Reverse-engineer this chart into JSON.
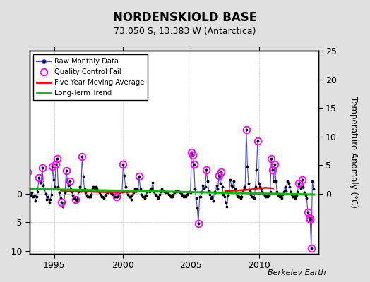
{
  "title": "NORDENSKIOLD BASE",
  "subtitle": "73.050 S, 13.383 W (Antarctica)",
  "ylabel": "Temperature Anomaly (°C)",
  "credit": "Berkeley Earth",
  "xlim": [
    1993.2,
    2014.3
  ],
  "ylim": [
    -10.5,
    25
  ],
  "background_color": "#e0e0e0",
  "plot_bg_color": "#ffffff",
  "raw_color": "#4444ff",
  "raw_marker_color": "#000000",
  "qc_color": "#ff00ff",
  "ma_color": "#ff0000",
  "trend_color": "#00bb00",
  "raw_data": [
    [
      1993.042,
      3.8
    ],
    [
      1993.125,
      1.5
    ],
    [
      1993.208,
      0.8
    ],
    [
      1993.292,
      -0.3
    ],
    [
      1993.375,
      0.2
    ],
    [
      1993.458,
      -0.5
    ],
    [
      1993.542,
      -0.3
    ],
    [
      1993.625,
      -1.2
    ],
    [
      1993.708,
      -0.5
    ],
    [
      1993.792,
      0.3
    ],
    [
      1993.875,
      2.8
    ],
    [
      1993.958,
      2.0
    ],
    [
      1994.042,
      2.0
    ],
    [
      1994.125,
      4.5
    ],
    [
      1994.208,
      1.5
    ],
    [
      1994.292,
      0.8
    ],
    [
      1994.375,
      0.0
    ],
    [
      1994.458,
      -1.0
    ],
    [
      1994.542,
      -0.5
    ],
    [
      1994.625,
      -1.5
    ],
    [
      1994.708,
      -1.0
    ],
    [
      1994.792,
      -0.2
    ],
    [
      1994.875,
      4.8
    ],
    [
      1994.958,
      2.5
    ],
    [
      1995.042,
      1.2
    ],
    [
      1995.125,
      5.2
    ],
    [
      1995.208,
      6.2
    ],
    [
      1995.292,
      1.2
    ],
    [
      1995.375,
      0.2
    ],
    [
      1995.458,
      -0.8
    ],
    [
      1995.542,
      -1.5
    ],
    [
      1995.625,
      -2.2
    ],
    [
      1995.708,
      -1.5
    ],
    [
      1995.792,
      0.2
    ],
    [
      1995.875,
      4.0
    ],
    [
      1995.958,
      2.5
    ],
    [
      1996.042,
      1.5
    ],
    [
      1996.125,
      2.2
    ],
    [
      1996.208,
      0.8
    ],
    [
      1996.292,
      0.3
    ],
    [
      1996.375,
      -0.3
    ],
    [
      1996.458,
      -0.8
    ],
    [
      1996.542,
      -1.0
    ],
    [
      1996.625,
      -1.2
    ],
    [
      1996.708,
      -0.8
    ],
    [
      1996.792,
      0.3
    ],
    [
      1996.875,
      1.2
    ],
    [
      1996.958,
      0.5
    ],
    [
      1997.042,
      6.5
    ],
    [
      1997.125,
      3.0
    ],
    [
      1997.208,
      0.8
    ],
    [
      1997.292,
      0.2
    ],
    [
      1997.375,
      -0.3
    ],
    [
      1997.458,
      -0.5
    ],
    [
      1997.542,
      -0.5
    ],
    [
      1997.625,
      -0.5
    ],
    [
      1997.708,
      -0.2
    ],
    [
      1997.792,
      0.8
    ],
    [
      1997.875,
      1.2
    ],
    [
      1997.958,
      0.8
    ],
    [
      1998.042,
      1.2
    ],
    [
      1998.125,
      1.0
    ],
    [
      1998.208,
      0.5
    ],
    [
      1998.292,
      0.2
    ],
    [
      1998.375,
      -0.2
    ],
    [
      1998.458,
      -0.5
    ],
    [
      1998.542,
      -0.5
    ],
    [
      1998.625,
      -0.8
    ],
    [
      1998.708,
      -0.3
    ],
    [
      1998.792,
      -0.2
    ],
    [
      1998.875,
      0.3
    ],
    [
      1998.958,
      0.2
    ],
    [
      1999.042,
      0.5
    ],
    [
      1999.125,
      0.2
    ],
    [
      1999.208,
      0.0
    ],
    [
      1999.292,
      -0.2
    ],
    [
      1999.375,
      -0.5
    ],
    [
      1999.458,
      -0.5
    ],
    [
      1999.542,
      -0.5
    ],
    [
      1999.625,
      -0.5
    ],
    [
      1999.708,
      -0.3
    ],
    [
      1999.792,
      0.2
    ],
    [
      1999.875,
      0.5
    ],
    [
      1999.958,
      0.3
    ],
    [
      2000.042,
      5.2
    ],
    [
      2000.125,
      3.2
    ],
    [
      2000.208,
      1.2
    ],
    [
      2000.292,
      0.3
    ],
    [
      2000.375,
      -0.2
    ],
    [
      2000.458,
      -0.5
    ],
    [
      2000.542,
      -0.5
    ],
    [
      2000.625,
      -1.0
    ],
    [
      2000.708,
      -0.3
    ],
    [
      2000.792,
      0.2
    ],
    [
      2000.875,
      0.8
    ],
    [
      2000.958,
      0.5
    ],
    [
      2001.042,
      0.8
    ],
    [
      2001.125,
      0.5
    ],
    [
      2001.208,
      3.0
    ],
    [
      2001.292,
      0.8
    ],
    [
      2001.375,
      -0.2
    ],
    [
      2001.458,
      -0.5
    ],
    [
      2001.542,
      -0.5
    ],
    [
      2001.625,
      -0.8
    ],
    [
      2001.708,
      -0.3
    ],
    [
      2001.792,
      0.3
    ],
    [
      2001.875,
      0.5
    ],
    [
      2001.958,
      0.3
    ],
    [
      2002.042,
      0.8
    ],
    [
      2002.125,
      1.0
    ],
    [
      2002.208,
      2.0
    ],
    [
      2002.292,
      0.3
    ],
    [
      2002.375,
      -0.2
    ],
    [
      2002.458,
      -0.3
    ],
    [
      2002.542,
      -0.5
    ],
    [
      2002.625,
      -0.8
    ],
    [
      2002.708,
      -0.2
    ],
    [
      2002.792,
      0.3
    ],
    [
      2002.875,
      0.8
    ],
    [
      2002.958,
      0.5
    ],
    [
      2003.042,
      0.3
    ],
    [
      2003.125,
      0.2
    ],
    [
      2003.208,
      0.3
    ],
    [
      2003.292,
      0.2
    ],
    [
      2003.375,
      -0.2
    ],
    [
      2003.458,
      -0.3
    ],
    [
      2003.542,
      -0.5
    ],
    [
      2003.625,
      -0.5
    ],
    [
      2003.708,
      -0.2
    ],
    [
      2003.792,
      0.2
    ],
    [
      2003.875,
      0.5
    ],
    [
      2003.958,
      0.3
    ],
    [
      2004.042,
      0.5
    ],
    [
      2004.125,
      0.3
    ],
    [
      2004.208,
      0.2
    ],
    [
      2004.292,
      0.0
    ],
    [
      2004.375,
      -0.3
    ],
    [
      2004.458,
      -0.5
    ],
    [
      2004.542,
      -0.3
    ],
    [
      2004.625,
      -0.5
    ],
    [
      2004.708,
      -0.2
    ],
    [
      2004.792,
      0.2
    ],
    [
      2004.875,
      0.3
    ],
    [
      2004.958,
      0.2
    ],
    [
      2005.042,
      7.2
    ],
    [
      2005.125,
      6.8
    ],
    [
      2005.208,
      5.2
    ],
    [
      2005.292,
      0.8
    ],
    [
      2005.375,
      -0.8
    ],
    [
      2005.458,
      -2.5
    ],
    [
      2005.542,
      -5.2
    ],
    [
      2005.625,
      -0.5
    ],
    [
      2005.708,
      -0.5
    ],
    [
      2005.792,
      0.3
    ],
    [
      2005.875,
      1.5
    ],
    [
      2005.958,
      1.0
    ],
    [
      2006.042,
      1.2
    ],
    [
      2006.125,
      4.2
    ],
    [
      2006.208,
      2.2
    ],
    [
      2006.292,
      0.5
    ],
    [
      2006.375,
      -0.2
    ],
    [
      2006.458,
      -0.8
    ],
    [
      2006.542,
      -0.5
    ],
    [
      2006.625,
      -1.2
    ],
    [
      2006.708,
      0.3
    ],
    [
      2006.792,
      0.2
    ],
    [
      2006.875,
      1.5
    ],
    [
      2006.958,
      0.8
    ],
    [
      2007.042,
      3.2
    ],
    [
      2007.125,
      1.8
    ],
    [
      2007.208,
      3.8
    ],
    [
      2007.292,
      1.2
    ],
    [
      2007.375,
      -0.2
    ],
    [
      2007.458,
      -0.5
    ],
    [
      2007.542,
      -1.5
    ],
    [
      2007.625,
      -2.2
    ],
    [
      2007.708,
      -0.3
    ],
    [
      2007.792,
      0.3
    ],
    [
      2007.875,
      2.5
    ],
    [
      2007.958,
      1.5
    ],
    [
      2008.042,
      1.2
    ],
    [
      2008.125,
      2.2
    ],
    [
      2008.208,
      0.8
    ],
    [
      2008.292,
      0.2
    ],
    [
      2008.375,
      -0.3
    ],
    [
      2008.458,
      -0.5
    ],
    [
      2008.542,
      -0.5
    ],
    [
      2008.625,
      -0.8
    ],
    [
      2008.708,
      -0.5
    ],
    [
      2008.792,
      0.3
    ],
    [
      2008.875,
      1.2
    ],
    [
      2008.958,
      0.8
    ],
    [
      2009.042,
      11.2
    ],
    [
      2009.125,
      4.8
    ],
    [
      2009.208,
      1.8
    ],
    [
      2009.292,
      0.5
    ],
    [
      2009.375,
      -0.2
    ],
    [
      2009.458,
      -0.5
    ],
    [
      2009.542,
      -0.5
    ],
    [
      2009.625,
      -0.8
    ],
    [
      2009.708,
      1.2
    ],
    [
      2009.792,
      4.2
    ],
    [
      2009.875,
      9.2
    ],
    [
      2009.958,
      1.8
    ],
    [
      2010.042,
      1.2
    ],
    [
      2010.125,
      0.8
    ],
    [
      2010.208,
      0.3
    ],
    [
      2010.292,
      0.0
    ],
    [
      2010.375,
      -0.3
    ],
    [
      2010.458,
      -0.5
    ],
    [
      2010.542,
      -0.3
    ],
    [
      2010.625,
      -0.5
    ],
    [
      2010.708,
      -0.3
    ],
    [
      2010.792,
      0.3
    ],
    [
      2010.875,
      6.2
    ],
    [
      2010.958,
      4.2
    ],
    [
      2011.042,
      2.2
    ],
    [
      2011.125,
      5.2
    ],
    [
      2011.208,
      2.2
    ],
    [
      2011.292,
      0.3
    ],
    [
      2011.375,
      -0.3
    ],
    [
      2011.458,
      -0.5
    ],
    [
      2011.542,
      -0.3
    ],
    [
      2011.625,
      -0.8
    ],
    [
      2011.708,
      -0.2
    ],
    [
      2011.792,
      0.3
    ],
    [
      2011.875,
      1.2
    ],
    [
      2011.958,
      0.5
    ],
    [
      2012.042,
      2.2
    ],
    [
      2012.125,
      1.8
    ],
    [
      2012.208,
      1.2
    ],
    [
      2012.292,
      0.3
    ],
    [
      2012.375,
      -0.2
    ],
    [
      2012.458,
      -0.5
    ],
    [
      2012.542,
      -0.3
    ],
    [
      2012.625,
      -0.8
    ],
    [
      2012.708,
      -0.3
    ],
    [
      2012.792,
      0.3
    ],
    [
      2012.875,
      1.8
    ],
    [
      2012.958,
      1.2
    ],
    [
      2013.042,
      1.0
    ],
    [
      2013.125,
      2.5
    ],
    [
      2013.208,
      1.2
    ],
    [
      2013.292,
      0.2
    ],
    [
      2013.375,
      -0.3
    ],
    [
      2013.458,
      -0.8
    ],
    [
      2013.542,
      -3.2
    ],
    [
      2013.625,
      -4.2
    ],
    [
      2013.708,
      -4.5
    ],
    [
      2013.792,
      -9.5
    ],
    [
      2013.875,
      2.2
    ],
    [
      2013.958,
      0.8
    ]
  ],
  "qc_points": [
    [
      1993.042,
      3.8
    ],
    [
      1993.875,
      2.8
    ],
    [
      1994.125,
      4.5
    ],
    [
      1994.875,
      4.8
    ],
    [
      1995.125,
      5.2
    ],
    [
      1995.208,
      6.2
    ],
    [
      1995.542,
      -1.5
    ],
    [
      1995.875,
      4.0
    ],
    [
      1996.125,
      2.2
    ],
    [
      1996.542,
      -1.0
    ],
    [
      1997.042,
      6.5
    ],
    [
      1999.542,
      -0.5
    ],
    [
      2000.042,
      5.2
    ],
    [
      2001.208,
      3.0
    ],
    [
      2005.042,
      7.2
    ],
    [
      2005.125,
      6.8
    ],
    [
      2005.208,
      5.2
    ],
    [
      2005.542,
      -5.2
    ],
    [
      2006.125,
      4.2
    ],
    [
      2007.042,
      3.2
    ],
    [
      2007.208,
      3.8
    ],
    [
      2009.042,
      11.2
    ],
    [
      2009.875,
      9.2
    ],
    [
      2010.875,
      6.2
    ],
    [
      2010.958,
      4.2
    ],
    [
      2011.125,
      5.2
    ],
    [
      2012.875,
      1.8
    ],
    [
      2013.125,
      2.5
    ],
    [
      2013.542,
      -3.2
    ],
    [
      2013.625,
      -4.2
    ],
    [
      2013.708,
      -4.5
    ],
    [
      2013.792,
      -9.5
    ]
  ],
  "moving_avg_seg1": [
    [
      1995.5,
      0.55
    ],
    [
      1996.0,
      0.48
    ],
    [
      1996.5,
      0.4
    ],
    [
      1997.0,
      0.42
    ],
    [
      1997.5,
      0.38
    ],
    [
      1998.0,
      0.32
    ],
    [
      1998.5,
      0.28
    ],
    [
      1999.0,
      0.25
    ],
    [
      1999.5,
      0.22
    ],
    [
      2000.0,
      0.28
    ],
    [
      2000.5,
      0.3
    ],
    [
      2001.0,
      0.28
    ]
  ],
  "moving_avg_seg2": [
    [
      2007.5,
      0.48
    ],
    [
      2008.0,
      0.52
    ],
    [
      2008.5,
      0.58
    ],
    [
      2009.0,
      0.68
    ],
    [
      2009.5,
      0.78
    ],
    [
      2010.0,
      0.95
    ],
    [
      2010.5,
      1.05
    ],
    [
      2011.0,
      0.95
    ]
  ],
  "trend_x": [
    1993.0,
    2014.0
  ],
  "trend_y": [
    0.85,
    -0.15
  ]
}
